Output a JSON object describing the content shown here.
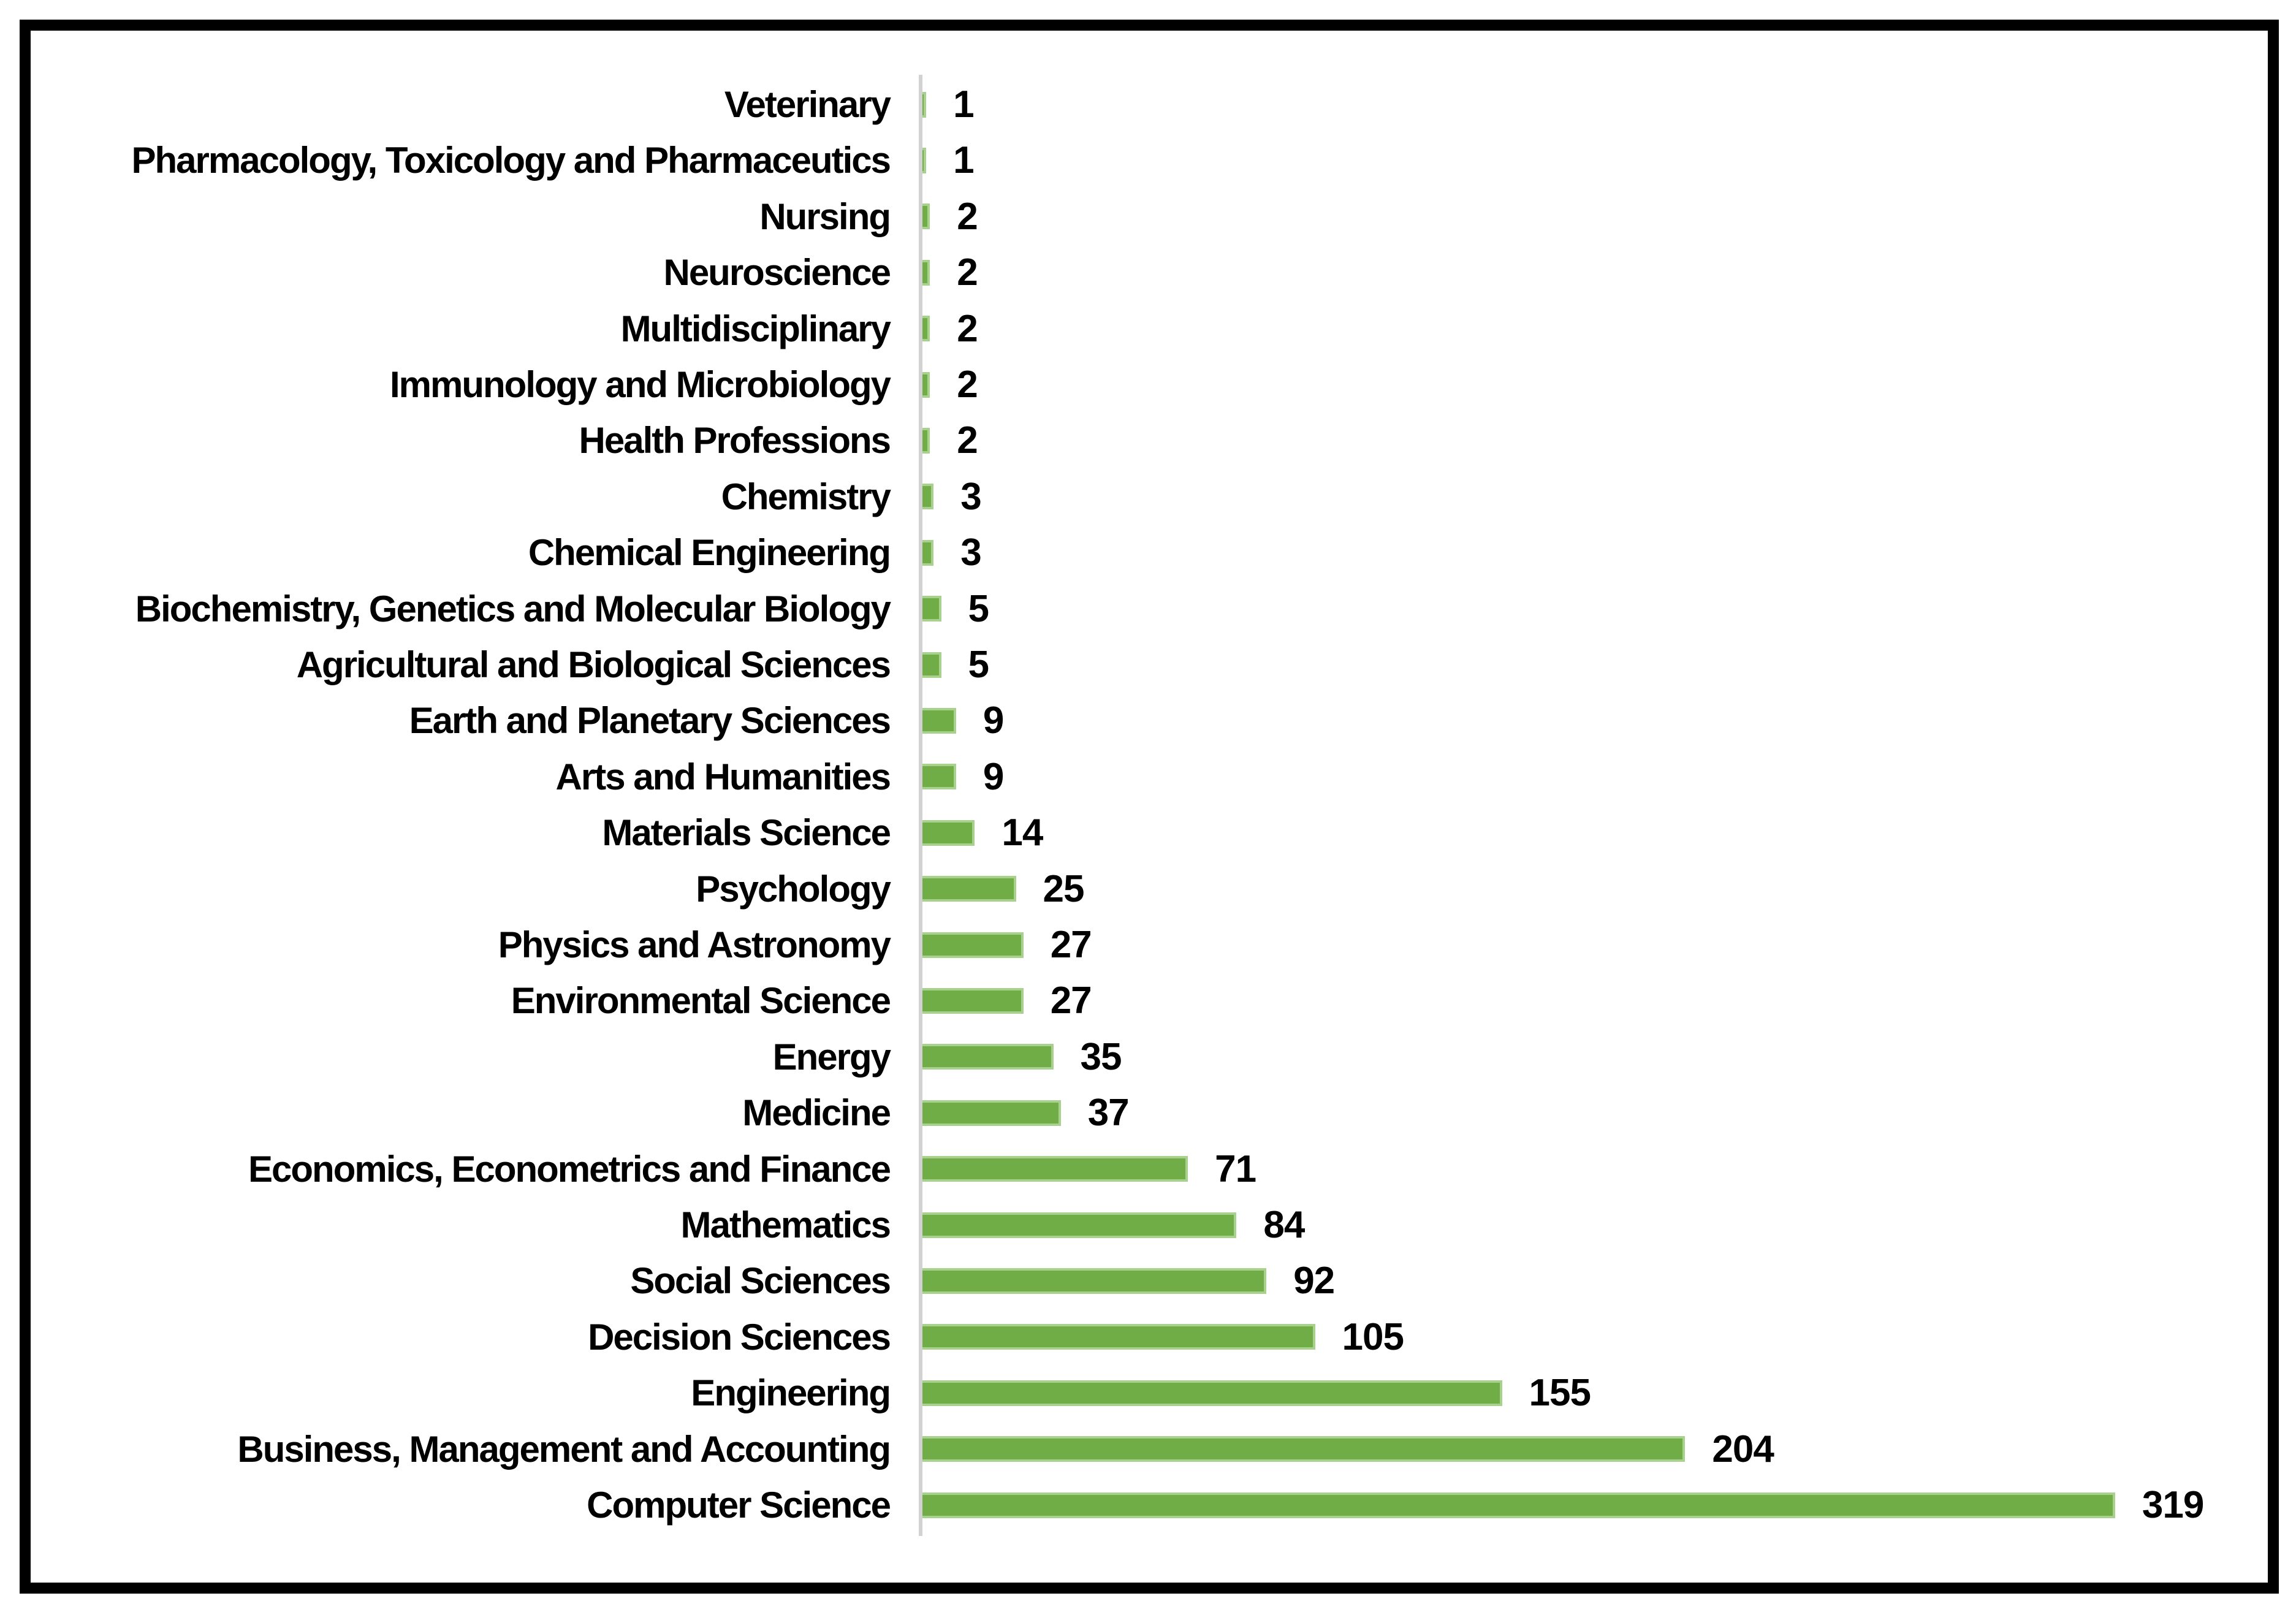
{
  "figure": {
    "background_color": "#ffffff",
    "frame_border_color": "#000000"
  },
  "chart_data": {
    "type": "bar",
    "orientation": "horizontal",
    "title": "",
    "xlabel": "",
    "ylabel": "",
    "grid": false,
    "legend": null,
    "value_labels": "end-of-bar",
    "row_order": "smallest-value-at-top",
    "bar_color": "#70AD47",
    "bar_edge_color": "#A9D18E",
    "axis_line_color": "#D2D2D2",
    "text_color": "#000000",
    "xlim": [
      0,
      330
    ],
    "categories": [
      "Veterinary",
      "Pharmacology, Toxicology and Pharmaceutics",
      "Nursing",
      "Neuroscience",
      "Multidisciplinary",
      "Immunology and Microbiology",
      "Health Professions",
      "Chemistry",
      "Chemical Engineering",
      "Biochemistry, Genetics and Molecular Biology",
      "Agricultural and Biological Sciences",
      "Earth and Planetary Sciences",
      "Arts and Humanities",
      "Materials Science",
      "Psychology",
      "Physics and Astronomy",
      "Environmental Science",
      "Energy",
      "Medicine",
      "Economics, Econometrics and Finance",
      "Mathematics",
      "Social Sciences",
      "Decision Sciences",
      "Engineering",
      "Business, Management and Accounting",
      "Computer Science"
    ],
    "values": [
      1,
      1,
      2,
      2,
      2,
      2,
      2,
      3,
      3,
      5,
      5,
      9,
      9,
      14,
      25,
      27,
      27,
      35,
      37,
      71,
      84,
      92,
      105,
      155,
      204,
      319
    ]
  }
}
